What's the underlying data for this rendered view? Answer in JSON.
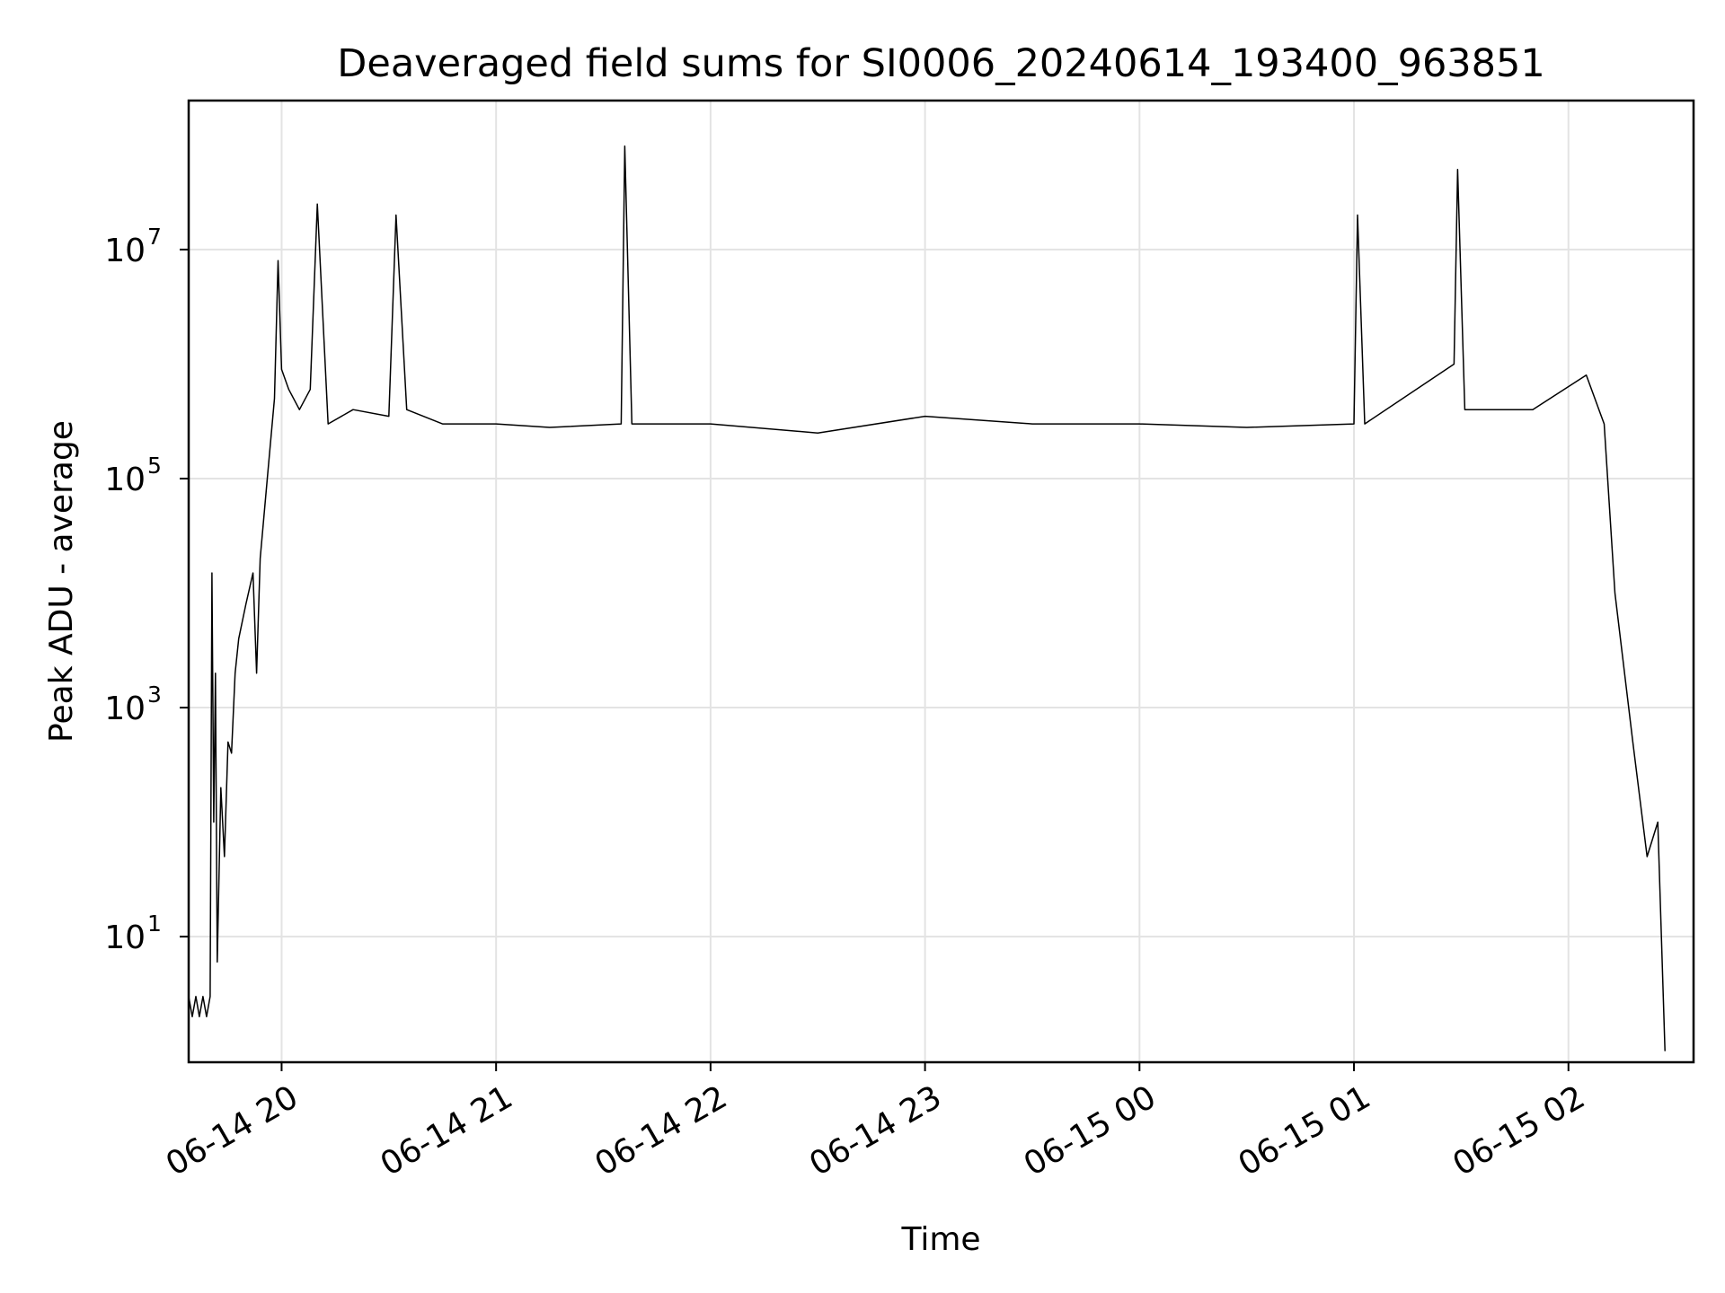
{
  "chart_data": {
    "type": "line",
    "title": "Deaveraged field sums for SI0006_20240614_193400_963851",
    "xlabel": "Time",
    "ylabel": "Peak ADU - average",
    "yscale": "log",
    "xlim": [
      "2024-06-14 19:34",
      "2024-06-15 02:35"
    ],
    "ylim": [
      0.8,
      200000000
    ],
    "grid": true,
    "x_ticks": [
      "06-14 20",
      "06-14 21",
      "06-14 22",
      "06-14 23",
      "06-15 00",
      "06-15 01",
      "06-15 02"
    ],
    "y_ticks": [
      {
        "value": 10,
        "base": "10",
        "exp": "1"
      },
      {
        "value": 1000,
        "base": "10",
        "exp": "3"
      },
      {
        "value": 100000,
        "base": "10",
        "exp": "5"
      },
      {
        "value": 10000000,
        "base": "10",
        "exp": "7"
      }
    ],
    "series": [
      {
        "color": "#000000",
        "points": [
          [
            "2024-06-14 19:34:00",
            3
          ],
          [
            "2024-06-14 19:35:00",
            2
          ],
          [
            "2024-06-14 19:36:00",
            3
          ],
          [
            "2024-06-14 19:37:00",
            2
          ],
          [
            "2024-06-14 19:38:00",
            3
          ],
          [
            "2024-06-14 19:39:00",
            2
          ],
          [
            "2024-06-14 19:40:00",
            3
          ],
          [
            "2024-06-14 19:40:30",
            15000
          ],
          [
            "2024-06-14 19:41:00",
            100
          ],
          [
            "2024-06-14 19:41:30",
            2000
          ],
          [
            "2024-06-14 19:42:00",
            6
          ],
          [
            "2024-06-14 19:43:00",
            200
          ],
          [
            "2024-06-14 19:44:00",
            50
          ],
          [
            "2024-06-14 19:45:00",
            500
          ],
          [
            "2024-06-14 19:46:00",
            400
          ],
          [
            "2024-06-14 19:47:00",
            2000
          ],
          [
            "2024-06-14 19:48:00",
            4000
          ],
          [
            "2024-06-14 19:50:00",
            8000
          ],
          [
            "2024-06-14 19:52:00",
            15000
          ],
          [
            "2024-06-14 19:53:00",
            2000
          ],
          [
            "2024-06-14 19:54:00",
            20000
          ],
          [
            "2024-06-14 19:56:00",
            100000
          ],
          [
            "2024-06-14 19:58:00",
            500000
          ],
          [
            "2024-06-14 20:00:00",
            900000
          ],
          [
            "2024-06-14 19:59:00",
            8000000
          ],
          [
            "2024-06-14 20:02:00",
            600000
          ],
          [
            "2024-06-14 20:05:00",
            400000
          ],
          [
            "2024-06-14 20:08:00",
            600000
          ],
          [
            "2024-06-14 20:10:00",
            25000000
          ],
          [
            "2024-06-14 20:13:00",
            300000
          ],
          [
            "2024-06-14 20:20:00",
            400000
          ],
          [
            "2024-06-14 20:30:00",
            350000
          ],
          [
            "2024-06-14 20:32:00",
            20000000
          ],
          [
            "2024-06-14 20:35:00",
            400000
          ],
          [
            "2024-06-14 20:45:00",
            300000
          ],
          [
            "2024-06-14 21:00:00",
            300000
          ],
          [
            "2024-06-14 21:15:00",
            280000
          ],
          [
            "2024-06-14 21:35:00",
            300000
          ],
          [
            "2024-06-14 21:36:00",
            80000000
          ],
          [
            "2024-06-14 21:38:00",
            300000
          ],
          [
            "2024-06-14 22:00:00",
            300000
          ],
          [
            "2024-06-14 22:30:00",
            250000
          ],
          [
            "2024-06-14 23:00:00",
            350000
          ],
          [
            "2024-06-14 23:30:00",
            300000
          ],
          [
            "2024-06-15 00:00:00",
            300000
          ],
          [
            "2024-06-15 00:30:00",
            280000
          ],
          [
            "2024-06-15 01:00:00",
            300000
          ],
          [
            "2024-06-15 01:01:00",
            20000000
          ],
          [
            "2024-06-15 01:03:00",
            300000
          ],
          [
            "2024-06-15 01:28:00",
            1000000
          ],
          [
            "2024-06-15 01:29:00",
            50000000
          ],
          [
            "2024-06-15 01:31:00",
            400000
          ],
          [
            "2024-06-15 01:50:00",
            400000
          ],
          [
            "2024-06-15 02:05:00",
            800000
          ],
          [
            "2024-06-15 02:10:00",
            300000
          ],
          [
            "2024-06-15 02:13:00",
            10000
          ],
          [
            "2024-06-15 02:18:00",
            500
          ],
          [
            "2024-06-15 02:22:00",
            50
          ],
          [
            "2024-06-15 02:25:00",
            100
          ],
          [
            "2024-06-15 02:27:00",
            1
          ]
        ]
      }
    ]
  }
}
